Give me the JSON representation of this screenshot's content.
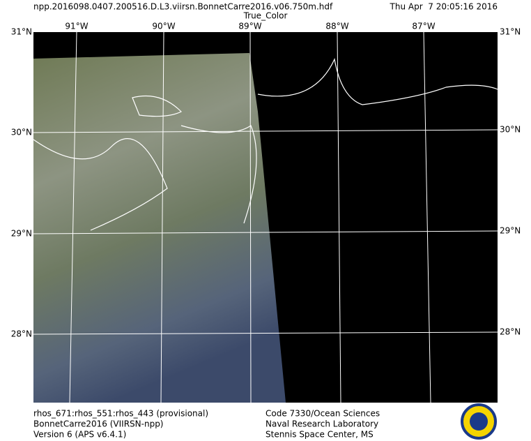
{
  "header": {
    "file": "npp.2016098.0407.200516.D.L3.viirsn.BonnetCarre2016.v06.750m.hdf",
    "timestamp": "Thu Apr  7 20:05:16 2016",
    "product": "True_Color"
  },
  "map": {
    "lat_labels": [
      "31°N",
      "30°N",
      "29°N",
      "28°N"
    ],
    "lon_labels": [
      "91°W",
      "90°W",
      "89°W",
      "88°W",
      "87°W"
    ]
  },
  "footer": {
    "left": [
      "rhos_671:rhos_551:rhos_443 (provisional)",
      "BonnetCarre2016 (VIIRSN-npp)",
      "Version 6 (APS v6.4.1)"
    ],
    "right": [
      "Code 7330/Ocean Sciences",
      "Naval Research Laboratory",
      "Stennis Space Center, MS"
    ]
  }
}
